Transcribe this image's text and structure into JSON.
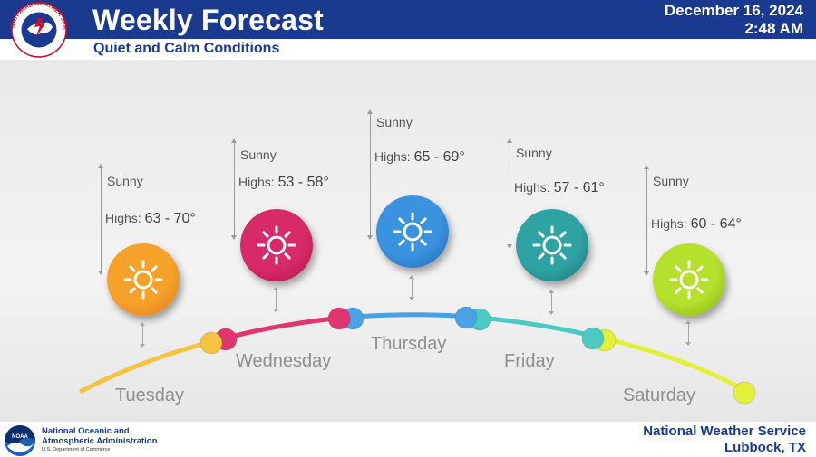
{
  "header": {
    "title": "Weekly Forecast",
    "subtitle": "Quiet and Calm Conditions",
    "date": "December 16, 2024",
    "time": "2:48 AM",
    "nws_logo": "national-weather-service-logo",
    "nws_logo_text": "NATIONAL WEATHER SERVICE"
  },
  "days": [
    {
      "name": "Tuesday",
      "condition": "Sunny",
      "highs_label": "Highs:",
      "highs_range": "63 - 70°",
      "color": "#f5a12a",
      "color_dark": "#d9781a",
      "arc_color": "#f6c340",
      "icon": "sun-icon"
    },
    {
      "name": "Wednesday",
      "condition": "Sunny",
      "highs_label": "Highs:",
      "highs_range": "53 - 58°",
      "color": "#d82a68",
      "color_dark": "#a81448",
      "arc_color": "#e0356e",
      "icon": "sun-icon"
    },
    {
      "name": "Thursday",
      "condition": "Sunny",
      "highs_label": "Highs:",
      "highs_range": "65 - 69°",
      "color": "#3b93e0",
      "color_dark": "#1f63b5",
      "arc_color": "#4aa1e4",
      "icon": "sun-icon"
    },
    {
      "name": "Friday",
      "condition": "Sunny",
      "highs_label": "Highs:",
      "highs_range": "57 - 61°",
      "color": "#2fa3a3",
      "color_dark": "#1a7474",
      "arc_color": "#4cc9c2",
      "icon": "sun-icon"
    },
    {
      "name": "Saturday",
      "condition": "Sunny",
      "highs_label": "Highs:",
      "highs_range": "60 - 64°",
      "color": "#b5e02e",
      "color_dark": "#82b012",
      "arc_color": "#e2f03a",
      "icon": "sun-icon"
    }
  ],
  "footer": {
    "noaa_logo": "noaa-logo",
    "noaa_logo_text": "NOAA",
    "noaa_name": "National Oceanic and Atmospheric Administration",
    "noaa_dept": "U.S. Department of Commerce",
    "office_name": "National Weather Service",
    "office_location": "Lubbock, TX"
  }
}
